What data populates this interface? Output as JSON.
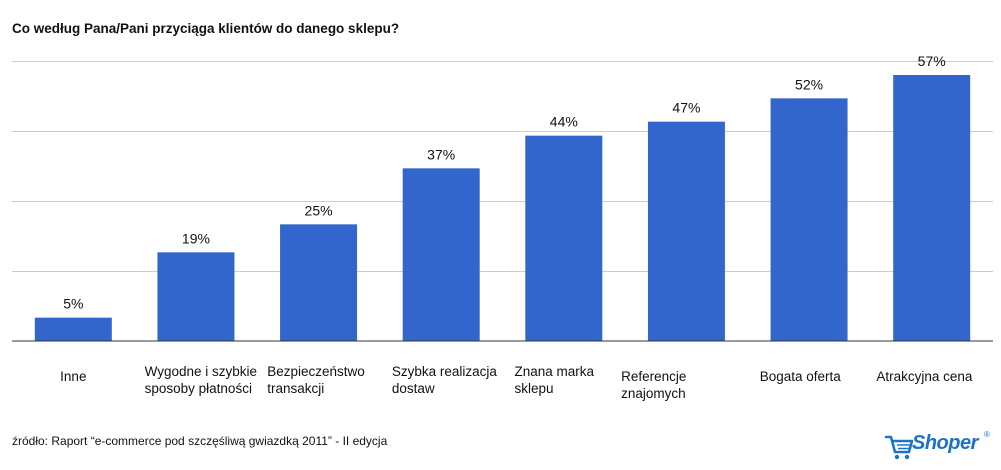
{
  "chart_data": {
    "type": "bar",
    "title": "Co według Pana/Pani przyciąga klientów do danego sklepu?",
    "categories": [
      "Inne",
      "Wygodne i szybkie\nsposoby płatności",
      "Bezpieczeństwo\ntransakcji",
      "Szybka realizacja\ndostaw",
      "Znana marka\nsklepu",
      "Referencje znajomych",
      "Bogata oferta",
      "Atrakcyjna cena"
    ],
    "values": [
      5,
      19,
      25,
      37,
      44,
      47,
      52,
      57
    ],
    "data_labels": [
      "5%",
      "19%",
      "25%",
      "37%",
      "44%",
      "47%",
      "52%",
      "57%"
    ],
    "ylim": [
      0,
      60
    ],
    "gridlines": [
      15,
      30,
      45,
      60
    ],
    "grid": true,
    "xlabel": "",
    "ylabel": "",
    "bar_color": "#3366cc"
  },
  "footer": {
    "source": "źródło: Raport “e-commerce pod szczęśliwą gwiazdką 2011” - II edycja",
    "logo_text": "Shoper",
    "logo_reg": "®"
  }
}
